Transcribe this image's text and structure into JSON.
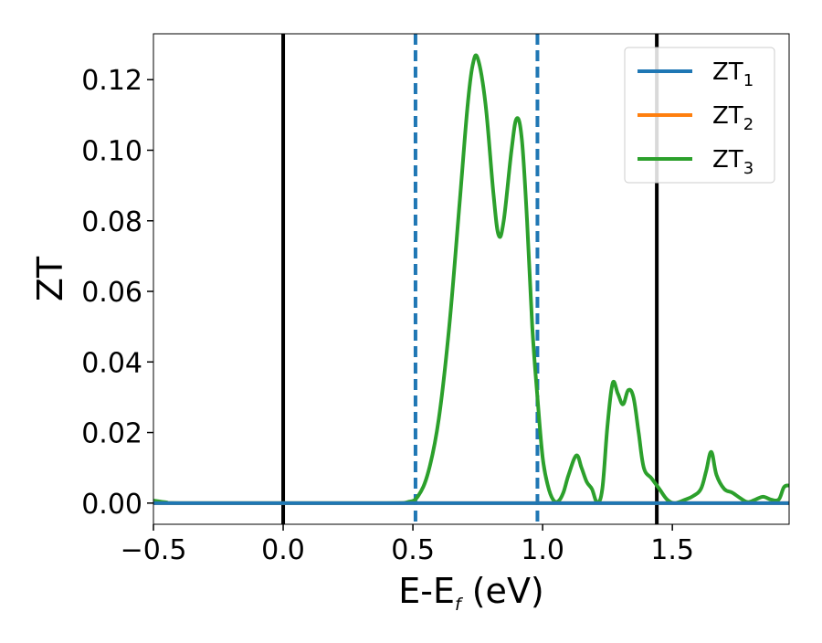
{
  "chart_data": {
    "type": "line",
    "xlabel": "E-E",
    "xlabel_sub": "f",
    "xlabel_suffix": " (eV)",
    "ylabel": "ZT",
    "xlim": [
      -0.5,
      1.95
    ],
    "ylim": [
      -0.006,
      0.133
    ],
    "xticks": [
      -0.5,
      0.0,
      0.5,
      1.0,
      1.5
    ],
    "xtick_labels": [
      "−0.5",
      "0.0",
      "0.5",
      "1.0",
      "1.5"
    ],
    "yticks": [
      0.0,
      0.02,
      0.04,
      0.06,
      0.08,
      0.1,
      0.12
    ],
    "ytick_labels": [
      "0.00",
      "0.02",
      "0.04",
      "0.06",
      "0.08",
      "0.10",
      "0.12"
    ],
    "grid": false,
    "legend_position": "top-right",
    "vlines": [
      {
        "x": 0.0,
        "color": "#000000",
        "style": "solid"
      },
      {
        "x": 1.44,
        "color": "#000000",
        "style": "solid"
      },
      {
        "x": 0.51,
        "color": "#1f77b4",
        "style": "dashed"
      },
      {
        "x": 0.98,
        "color": "#1f77b4",
        "style": "dashed"
      }
    ],
    "series": [
      {
        "name": "ZT",
        "sub": "1",
        "color": "#1f77b4",
        "x": [
          -0.5,
          1.95
        ],
        "y": [
          0.0,
          0.0
        ]
      },
      {
        "name": "ZT",
        "sub": "2",
        "color": "#ff7f0e",
        "x": [
          -0.5,
          1.95
        ],
        "y": [
          0.0,
          0.0
        ]
      },
      {
        "name": "ZT",
        "sub": "3",
        "color": "#2ca02c",
        "x": [
          -0.5,
          -0.45,
          -0.4,
          0.0,
          0.4,
          0.48,
          0.52,
          0.56,
          0.6,
          0.64,
          0.68,
          0.71,
          0.73,
          0.75,
          0.78,
          0.81,
          0.83,
          0.85,
          0.88,
          0.9,
          0.92,
          0.94,
          0.96,
          0.98,
          1.0,
          1.02,
          1.04,
          1.06,
          1.08,
          1.1,
          1.13,
          1.15,
          1.17,
          1.19,
          1.21,
          1.23,
          1.25,
          1.27,
          1.29,
          1.31,
          1.33,
          1.35,
          1.37,
          1.39,
          1.42,
          1.45,
          1.48,
          1.51,
          1.55,
          1.58,
          1.61,
          1.63,
          1.65,
          1.67,
          1.7,
          1.73,
          1.76,
          1.79,
          1.82,
          1.85,
          1.88,
          1.91,
          1.93,
          1.95
        ],
        "y": [
          0.0007,
          0.0002,
          0.0,
          0.0,
          0.0,
          0.0003,
          0.002,
          0.009,
          0.024,
          0.05,
          0.085,
          0.112,
          0.124,
          0.126,
          0.113,
          0.088,
          0.076,
          0.08,
          0.1,
          0.109,
          0.103,
          0.08,
          0.05,
          0.03,
          0.013,
          0.005,
          0.001,
          0.0005,
          0.003,
          0.008,
          0.0135,
          0.01,
          0.006,
          0.004,
          0.0003,
          0.004,
          0.022,
          0.034,
          0.031,
          0.028,
          0.032,
          0.03,
          0.02,
          0.01,
          0.007,
          0.004,
          0.001,
          0.0,
          0.001,
          0.002,
          0.004,
          0.009,
          0.0145,
          0.008,
          0.004,
          0.003,
          0.0015,
          0.0003,
          0.001,
          0.0018,
          0.001,
          0.001,
          0.0045,
          0.005
        ]
      }
    ]
  }
}
